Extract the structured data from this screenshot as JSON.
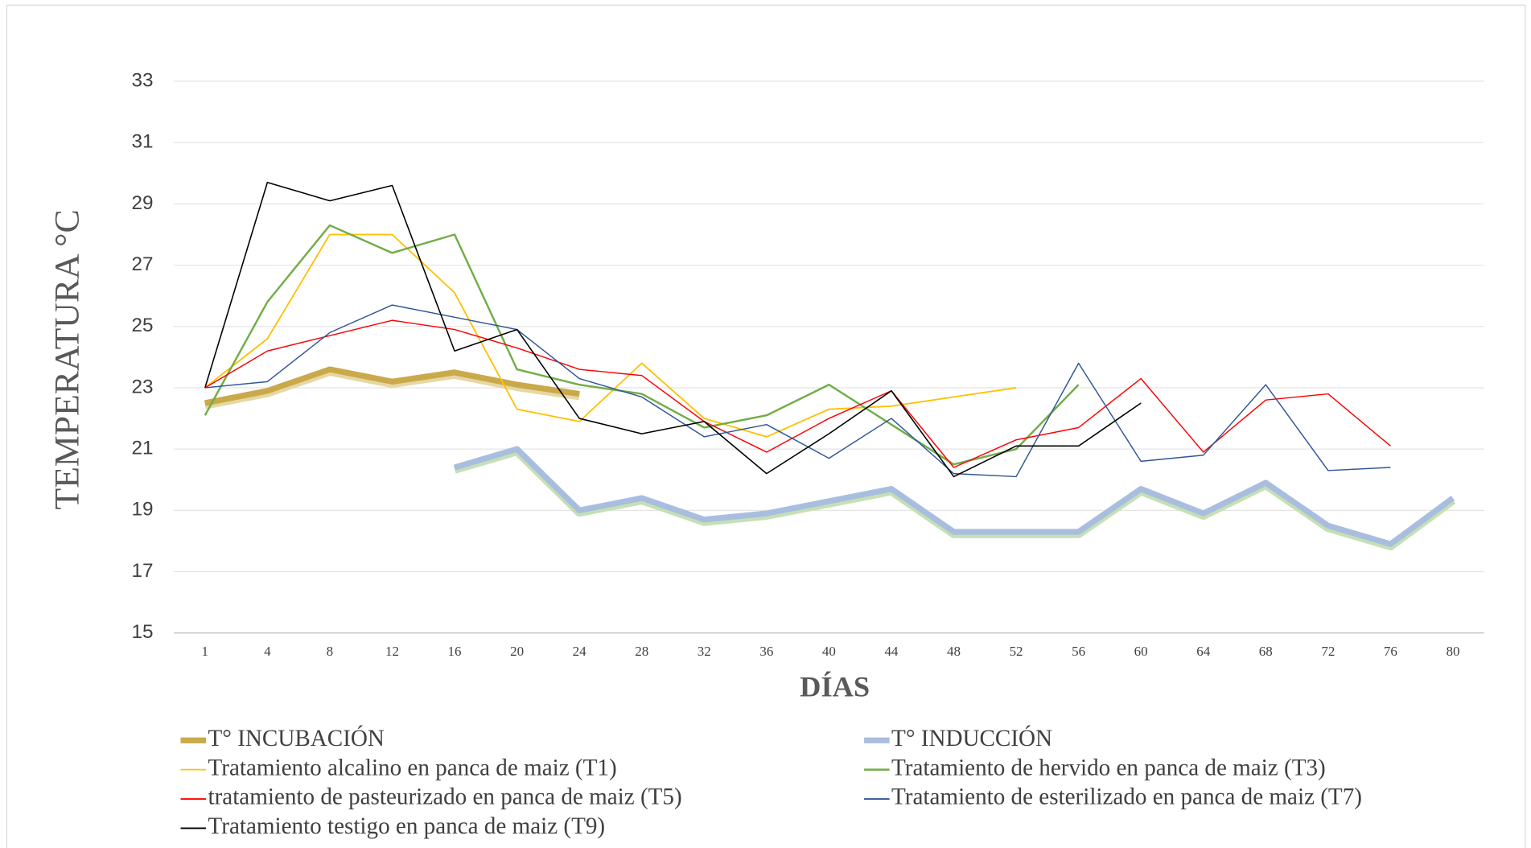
{
  "chart_data": {
    "type": "line",
    "xlabel": "DÍAS",
    "ylabel": "TEMPERATURA  °C",
    "categories": [
      "1",
      "4",
      "8",
      "12",
      "16",
      "20",
      "24",
      "28",
      "32",
      "36",
      "40",
      "44",
      "48",
      "52",
      "56",
      "60",
      "64",
      "68",
      "72",
      "76",
      "80"
    ],
    "ylim": [
      15,
      33
    ],
    "yticks": [
      15,
      17,
      19,
      21,
      23,
      25,
      27,
      29,
      31,
      33
    ],
    "grid": true,
    "legend": "bottom",
    "series": [
      {
        "name": "T° INCUBACIÓN",
        "color": "#c9a94a",
        "line_width": 6,
        "values": [
          22.5,
          22.9,
          23.6,
          23.2,
          23.5,
          23.1,
          22.8,
          null,
          null,
          null,
          null,
          null,
          null,
          null,
          null,
          null,
          null,
          null,
          null,
          null,
          null
        ]
      },
      {
        "name": "T° INDUCCIÓN",
        "color": "#a9bedf",
        "line_width": 6,
        "values": [
          null,
          null,
          null,
          null,
          20.4,
          21.0,
          19.0,
          19.4,
          18.7,
          18.9,
          19.3,
          19.7,
          18.3,
          18.3,
          18.3,
          19.7,
          18.9,
          19.9,
          18.5,
          17.9,
          19.4
        ]
      },
      {
        "name": "Tratamiento alcalino en panca de maiz (T1)",
        "color": "#ffc000",
        "line_width": 1.5,
        "values": [
          23.0,
          24.6,
          28.0,
          28.0,
          26.1,
          22.3,
          21.9,
          23.8,
          22.0,
          21.4,
          22.3,
          22.4,
          22.7,
          23.0,
          null,
          null,
          null,
          null,
          null,
          null,
          null
        ]
      },
      {
        "name": "Tratamiento de hervido en panca de maiz  (T3)",
        "color": "#70ad47",
        "line_width": 2,
        "values": [
          22.1,
          25.8,
          28.3,
          27.4,
          28.0,
          23.6,
          23.1,
          22.8,
          21.7,
          22.1,
          23.1,
          21.8,
          20.5,
          21.0,
          23.1,
          null,
          null,
          null,
          null,
          null,
          null
        ]
      },
      {
        "name": "tratamiento de pasteurizado en panca de maiz  (T5)",
        "color": "#ff0000",
        "line_width": 1.2,
        "values": [
          23.0,
          24.2,
          24.7,
          25.2,
          24.9,
          24.3,
          23.6,
          23.4,
          21.9,
          20.9,
          22.0,
          22.9,
          20.4,
          21.3,
          21.7,
          23.3,
          20.9,
          22.6,
          22.8,
          21.1,
          null
        ]
      },
      {
        "name": "Tratamiento de esterilizado en panca de maiz (T7)",
        "color": "#2f5597",
        "line_width": 1.2,
        "values": [
          23.0,
          23.2,
          24.8,
          25.7,
          25.3,
          24.9,
          23.3,
          22.7,
          21.4,
          21.8,
          20.7,
          22.0,
          20.2,
          20.1,
          23.8,
          20.6,
          20.8,
          23.1,
          20.3,
          20.4,
          null
        ]
      },
      {
        "name": "Tratamiento testigo en panca de maiz (T9)",
        "color": "#000000",
        "line_width": 1.3,
        "values": [
          23.0,
          29.7,
          29.1,
          29.6,
          24.2,
          24.9,
          22.0,
          21.5,
          21.9,
          20.2,
          21.5,
          22.9,
          20.1,
          21.1,
          21.1,
          22.5,
          null,
          null,
          null,
          null,
          null
        ]
      }
    ]
  }
}
